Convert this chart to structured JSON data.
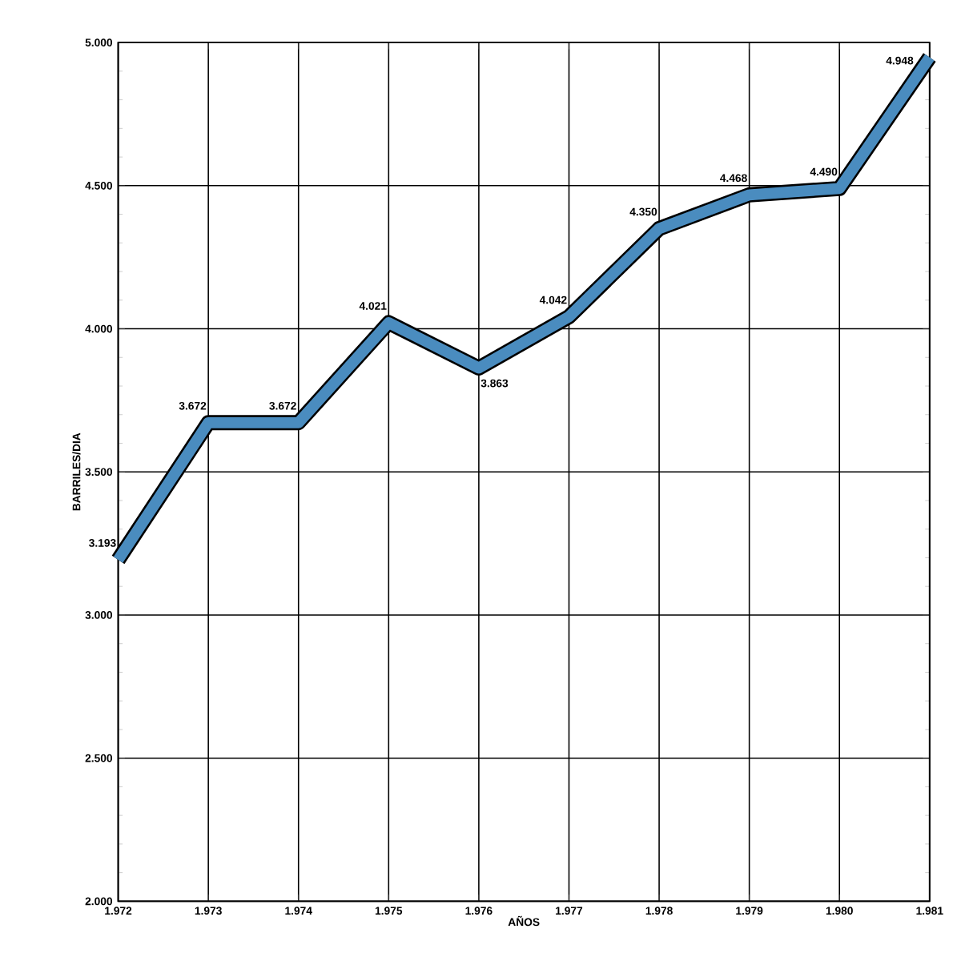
{
  "chart_data": {
    "type": "line",
    "xlabel": "AÑOS",
    "ylabel": "BARRILES/DIA",
    "x": [
      1972,
      1973,
      1974,
      1975,
      1976,
      1977,
      1978,
      1979,
      1980,
      1981
    ],
    "values": [
      3193,
      3672,
      3672,
      4021,
      3863,
      4042,
      4350,
      4468,
      4490,
      4948
    ],
    "value_labels": [
      "3.193",
      "3.672",
      "3.672",
      "4.021",
      "3.863",
      "4.042",
      "4.350",
      "4.468",
      "4.490",
      "4.948"
    ],
    "color": "#4a8cbf",
    "xlim": [
      1972,
      1981
    ],
    "xticks": [
      {
        "value": 1972,
        "label": "1.972"
      },
      {
        "value": 1973,
        "label": "1.973"
      },
      {
        "value": 1974,
        "label": "1.974"
      },
      {
        "value": 1975,
        "label": "1.975"
      },
      {
        "value": 1976,
        "label": "1.976"
      },
      {
        "value": 1977,
        "label": "1.977"
      },
      {
        "value": 1978,
        "label": "1.978"
      },
      {
        "value": 1979,
        "label": "1.979"
      },
      {
        "value": 1980,
        "label": "1.980"
      },
      {
        "value": 1981,
        "label": "1.981"
      }
    ],
    "ylim": [
      2000,
      5000
    ],
    "yticks": [
      {
        "value": 2000,
        "label": "2.000"
      },
      {
        "value": 2500,
        "label": "2.500"
      },
      {
        "value": 3000,
        "label": "3.000"
      },
      {
        "value": 3500,
        "label": "3.500"
      },
      {
        "value": 4000,
        "label": "4.000"
      },
      {
        "value": 4500,
        "label": "4.500"
      },
      {
        "value": 5000,
        "label": "5.000"
      }
    ],
    "grid": true,
    "marker": "none",
    "line_style": "solid"
  }
}
